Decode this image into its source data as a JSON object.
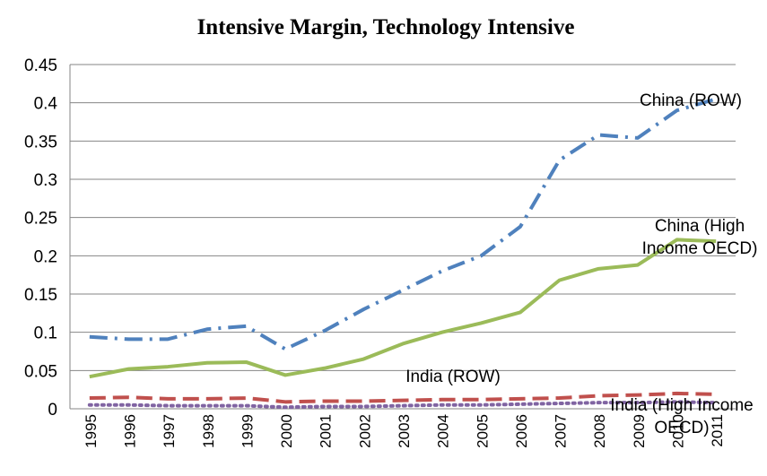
{
  "chart_data": {
    "type": "line",
    "title": "Intensive Margin, Technology Intensive",
    "categories": [
      "1995",
      "1996",
      "1997",
      "1998",
      "1999",
      "2000",
      "2001",
      "2002",
      "2003",
      "2004",
      "2005",
      "2006",
      "2007",
      "2008",
      "2009",
      "2010",
      "2011"
    ],
    "ylim": [
      0,
      0.45
    ],
    "yticks": [
      0,
      0.05,
      0.1,
      0.15,
      0.2,
      0.25,
      0.3,
      0.35,
      0.4,
      0.45
    ],
    "grid": true,
    "series": [
      {
        "name": "China (ROW)",
        "color": "#4f81bd",
        "style": "dashdot",
        "values": [
          0.094,
          0.091,
          0.091,
          0.104,
          0.108,
          0.078,
          0.102,
          0.13,
          0.155,
          0.18,
          0.2,
          0.238,
          0.325,
          0.358,
          0.354,
          0.39,
          0.405
        ]
      },
      {
        "name": "China (High Income OECD)",
        "color": "#9bbb59",
        "style": "solid",
        "values": [
          0.042,
          0.052,
          0.055,
          0.06,
          0.061,
          0.044,
          0.053,
          0.065,
          0.085,
          0.1,
          0.112,
          0.126,
          0.168,
          0.183,
          0.188,
          0.221,
          0.219
        ]
      },
      {
        "name": "India (ROW)",
        "color": "#c0504d",
        "style": "dashed",
        "values": [
          0.014,
          0.015,
          0.013,
          0.013,
          0.014,
          0.009,
          0.01,
          0.01,
          0.011,
          0.012,
          0.012,
          0.013,
          0.014,
          0.017,
          0.018,
          0.02,
          0.019
        ]
      },
      {
        "name": "India (High Income OECD)",
        "color": "#8064a2",
        "style": "dotted",
        "values": [
          0.005,
          0.005,
          0.004,
          0.004,
          0.004,
          0.002,
          0.003,
          0.003,
          0.004,
          0.005,
          0.005,
          0.006,
          0.007,
          0.008,
          0.008,
          0.009,
          0.008
        ]
      }
    ]
  }
}
